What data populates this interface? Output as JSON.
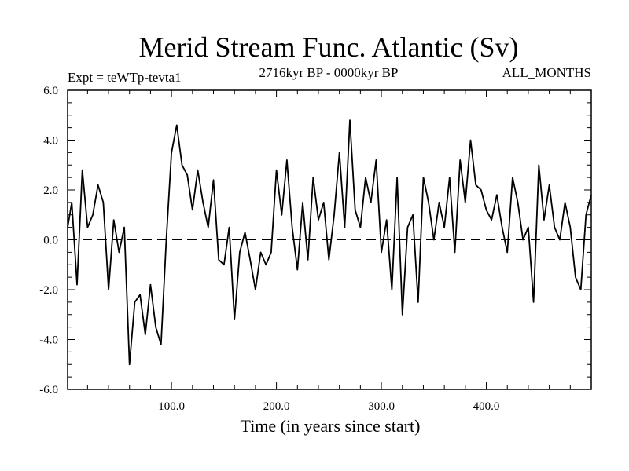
{
  "chart_data": {
    "type": "line",
    "title": "Merid Stream Func. Atlantic (Sv)",
    "expt_label": "Expt = teWTp-tevta1",
    "period_label": "2716kyr BP - 0000kyr BP",
    "months_label": "ALL_MONTHS",
    "xlabel": "Time (in years since start)",
    "ylabel": "",
    "xlim": [
      1,
      500
    ],
    "ylim": [
      -6.0,
      6.0
    ],
    "xticks": [
      100,
      200,
      300,
      400
    ],
    "xtick_labels": [
      "100.0",
      "200.0",
      "300.0",
      "400.0"
    ],
    "yticks": [
      -6,
      -4,
      -2,
      0,
      2,
      4,
      6
    ],
    "ytick_labels": [
      "-6.0",
      "-4.0",
      "-2.0",
      "0.0",
      "2.0",
      "4.0",
      "6.0"
    ],
    "reference_line": 0.0,
    "grid": false,
    "series": [
      {
        "name": "Merid Stream Func. Atlantic",
        "x": [
          1,
          5,
          10,
          15,
          20,
          25,
          30,
          35,
          40,
          45,
          50,
          55,
          60,
          65,
          70,
          75,
          80,
          85,
          90,
          95,
          100,
          105,
          110,
          115,
          120,
          125,
          130,
          135,
          140,
          145,
          150,
          155,
          160,
          165,
          170,
          175,
          180,
          185,
          190,
          195,
          200,
          205,
          210,
          215,
          220,
          225,
          230,
          235,
          240,
          245,
          250,
          255,
          260,
          265,
          270,
          275,
          280,
          285,
          290,
          295,
          300,
          305,
          310,
          315,
          320,
          325,
          330,
          335,
          340,
          345,
          350,
          355,
          360,
          365,
          370,
          375,
          380,
          385,
          390,
          395,
          400,
          405,
          410,
          415,
          420,
          425,
          430,
          435,
          440,
          445,
          450,
          455,
          460,
          465,
          470,
          475,
          480,
          485,
          490,
          495,
          500
        ],
        "values": [
          0.5,
          1.5,
          -1.8,
          2.8,
          0.5,
          1.0,
          2.2,
          1.5,
          -2.0,
          0.8,
          -0.5,
          0.5,
          -5.0,
          -2.5,
          -2.2,
          -3.8,
          -1.8,
          -3.5,
          -4.2,
          0.0,
          3.5,
          4.6,
          3.0,
          2.6,
          1.2,
          2.8,
          1.5,
          0.5,
          2.4,
          -0.8,
          -1.0,
          0.5,
          -3.2,
          -0.5,
          0.3,
          -0.8,
          -2.0,
          -0.5,
          -1.0,
          -0.5,
          2.8,
          1.0,
          3.2,
          0.5,
          -1.2,
          1.5,
          -0.8,
          2.5,
          0.8,
          1.5,
          -0.8,
          1.0,
          3.5,
          0.5,
          4.8,
          1.2,
          0.5,
          2.5,
          1.5,
          3.2,
          -0.5,
          0.8,
          -2.0,
          2.5,
          -3.0,
          0.5,
          1.0,
          -2.5,
          2.5,
          1.5,
          0.0,
          1.5,
          0.5,
          2.5,
          -0.5,
          3.2,
          1.5,
          4.0,
          2.2,
          2.0,
          1.2,
          0.8,
          1.8,
          0.5,
          -0.5,
          2.5,
          1.5,
          0.0,
          0.5,
          -2.5,
          3.0,
          0.8,
          2.2,
          0.5,
          0.0,
          1.5,
          0.5,
          -1.5,
          -2.0,
          1.0,
          1.8
        ]
      }
    ]
  }
}
